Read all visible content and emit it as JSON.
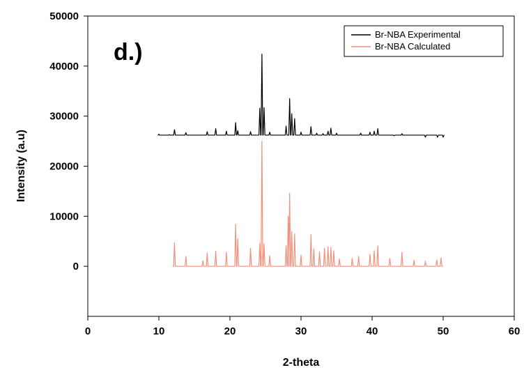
{
  "chart_data": {
    "type": "line",
    "title": "",
    "panel_label": "d.)",
    "xlabel": "2-theta",
    "ylabel": "Intensity (a.u)",
    "xlim": [
      0,
      60
    ],
    "ylim": [
      -10000,
      50000
    ],
    "x_ticks": [
      0,
      10,
      20,
      30,
      40,
      50,
      60
    ],
    "x_tick_labels": [
      "0",
      "10",
      "20",
      "30",
      "40",
      "50",
      "60"
    ],
    "y_ticks": [
      0,
      10000,
      20000,
      30000,
      40000,
      50000
    ],
    "y_tick_labels": [
      "0",
      "10000",
      "20000",
      "30000",
      "40000",
      "50000"
    ],
    "grid": false,
    "legend_position": "top-right",
    "series": [
      {
        "name": "Br-NBA Experimental",
        "color": "#000000",
        "baseline": 26200,
        "x": [
          10.0,
          11.5,
          12.2,
          13.8,
          16.8,
          18.0,
          19.5,
          20.8,
          21.1,
          22.9,
          24.2,
          24.5,
          24.8,
          25.6,
          27.9,
          28.4,
          28.7,
          29.1,
          30.0,
          31.4,
          32.2,
          33.1,
          33.8,
          34.2,
          35.0,
          37.2,
          38.4,
          39.7,
          40.3,
          40.8,
          43.1,
          44.2,
          45.9,
          47.5,
          49.2,
          50.0
        ],
        "y": [
          26400,
          26300,
          27300,
          26700,
          26900,
          27500,
          27000,
          28700,
          27100,
          26900,
          31600,
          42400,
          31700,
          26800,
          28000,
          33500,
          30500,
          29500,
          26800,
          27900,
          26600,
          26500,
          27000,
          27600,
          26600,
          26200,
          26600,
          26800,
          27000,
          27500,
          26100,
          26500,
          26200,
          25800,
          25800,
          25800
        ]
      },
      {
        "name": "Br-NBA Calculated",
        "color": "#f0917b",
        "baseline": 0,
        "x": [
          12.2,
          13.8,
          16.2,
          16.8,
          18.0,
          19.5,
          20.8,
          21.1,
          22.9,
          24.2,
          24.5,
          24.8,
          25.6,
          27.9,
          28.2,
          28.4,
          28.7,
          29.1,
          30.0,
          31.4,
          31.8,
          32.6,
          33.3,
          33.8,
          34.2,
          34.6,
          35.4,
          37.2,
          38.1,
          39.7,
          40.3,
          40.8,
          42.5,
          44.2,
          45.9,
          47.5,
          49.1,
          49.7
        ],
        "y": [
          4700,
          2000,
          1100,
          2700,
          3000,
          2800,
          8400,
          5500,
          3600,
          4600,
          25000,
          4500,
          2100,
          4100,
          10000,
          14600,
          6900,
          6500,
          2200,
          6300,
          3500,
          2900,
          3600,
          3900,
          3800,
          3100,
          1500,
          1600,
          2000,
          2400,
          3100,
          4100,
          1600,
          2800,
          1200,
          1000,
          1300,
          1700
        ]
      }
    ]
  }
}
